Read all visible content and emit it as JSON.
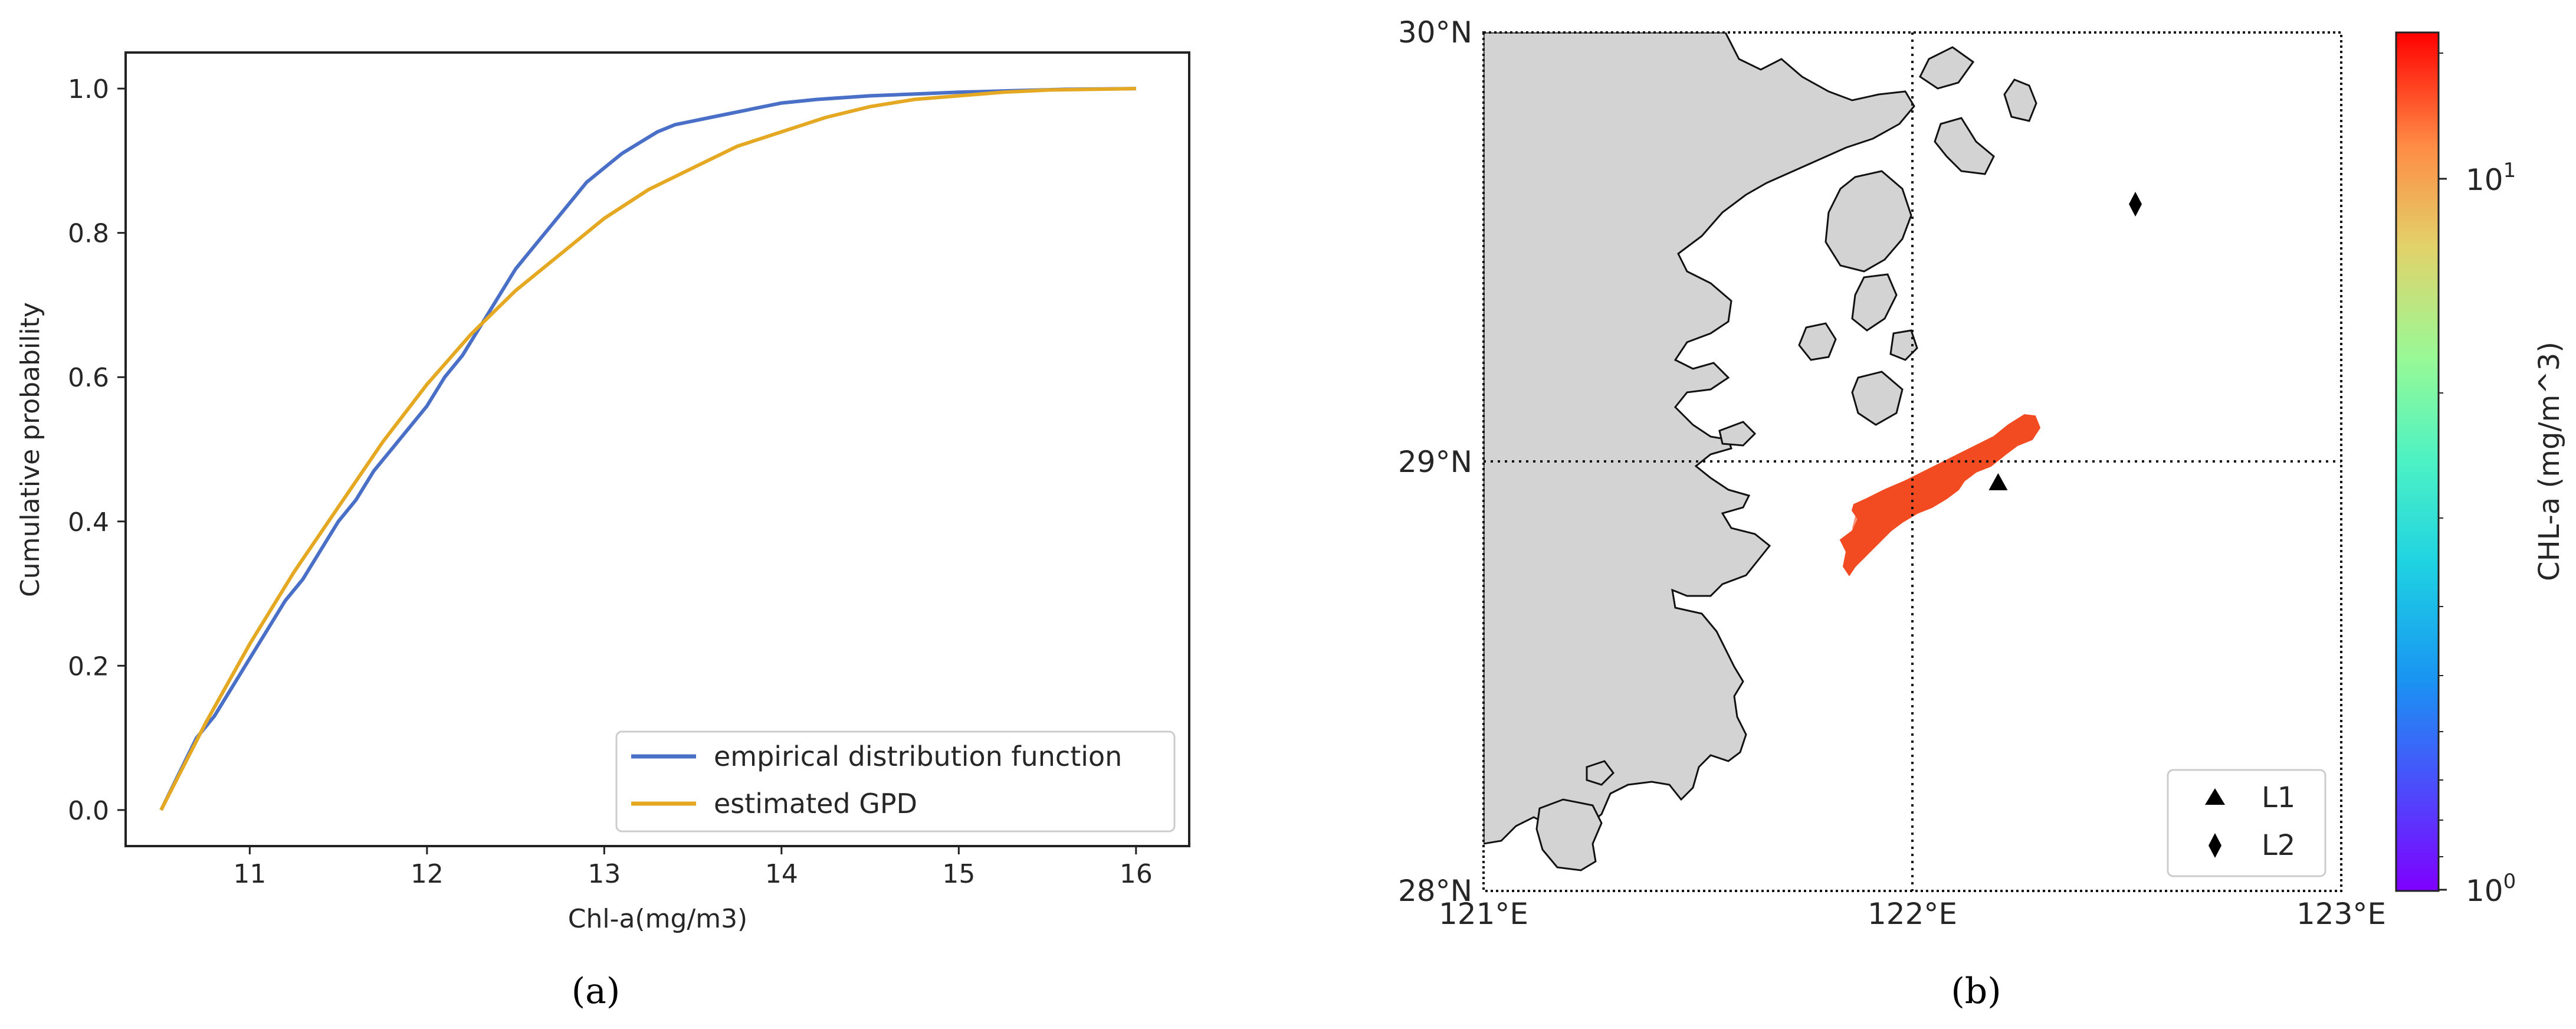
{
  "chart_data": [
    {
      "panel_label": "(a)",
      "type": "line",
      "title": "",
      "xlabel": "Chl-a(mg/m3)",
      "ylabel": "Cumulative probability",
      "xlim": [
        10.3,
        16.3
      ],
      "ylim": [
        -0.05,
        1.05
      ],
      "xticks": [
        "11",
        "12",
        "13",
        "14",
        "15",
        "16"
      ],
      "yticks": [
        "0.0",
        "0.2",
        "0.4",
        "0.6",
        "0.8",
        "1.0"
      ],
      "grid": false,
      "legend_position": "lower right",
      "series": [
        {
          "name": "empirical distribution function",
          "color": "#4a6fc7",
          "x": [
            10.5,
            10.6,
            10.7,
            10.8,
            10.9,
            11.0,
            11.1,
            11.2,
            11.3,
            11.4,
            11.5,
            11.6,
            11.7,
            11.8,
            11.9,
            12.0,
            12.1,
            12.2,
            12.3,
            12.4,
            12.5,
            12.6,
            12.7,
            12.8,
            12.9,
            13.0,
            13.1,
            13.2,
            13.3,
            13.4,
            13.5,
            13.6,
            13.8,
            14.0,
            14.2,
            14.5,
            14.8,
            15.0,
            15.3,
            15.6,
            16.0
          ],
          "y": [
            0.0,
            0.05,
            0.1,
            0.13,
            0.17,
            0.21,
            0.25,
            0.29,
            0.32,
            0.36,
            0.4,
            0.43,
            0.47,
            0.5,
            0.53,
            0.56,
            0.6,
            0.63,
            0.67,
            0.71,
            0.75,
            0.78,
            0.81,
            0.84,
            0.87,
            0.89,
            0.91,
            0.925,
            0.94,
            0.95,
            0.955,
            0.96,
            0.97,
            0.98,
            0.985,
            0.99,
            0.993,
            0.995,
            0.997,
            0.999,
            1.0
          ]
        },
        {
          "name": "estimated GPD",
          "color": "#e5a823",
          "x": [
            10.5,
            10.75,
            11.0,
            11.25,
            11.5,
            11.75,
            12.0,
            12.25,
            12.5,
            12.75,
            13.0,
            13.25,
            13.5,
            13.75,
            14.0,
            14.25,
            14.5,
            14.75,
            15.0,
            15.25,
            15.5,
            15.75,
            16.0
          ],
          "y": [
            0.0,
            0.12,
            0.23,
            0.33,
            0.42,
            0.51,
            0.59,
            0.66,
            0.72,
            0.77,
            0.82,
            0.86,
            0.89,
            0.92,
            0.94,
            0.96,
            0.975,
            0.985,
            0.99,
            0.995,
            0.998,
            0.999,
            1.0
          ]
        }
      ]
    },
    {
      "panel_label": "(b)",
      "type": "map",
      "title": "",
      "x_range": [
        "121°E",
        "123°E"
      ],
      "y_range": [
        "28°N",
        "30°N"
      ],
      "xticks": [
        "121°E",
        "122°E",
        "123°E"
      ],
      "yticks": [
        "28°N",
        "29°N",
        "30°N"
      ],
      "gridlines": {
        "lon": [
          "122°E"
        ],
        "lat": [
          "29°N"
        ],
        "style": "dotted"
      },
      "land_color": "#d3d3d3",
      "bloom_color": "#f24b22",
      "legend_position": "lower right",
      "markers": [
        {
          "name": "L1",
          "shape": "triangle",
          "lon": 122.2,
          "lat": 28.95
        },
        {
          "name": "L2",
          "shape": "diamond",
          "lon": 122.52,
          "lat": 29.6
        }
      ],
      "colorbar": {
        "label": "CHL-a (mg/m^3)",
        "scale": "log",
        "range": [
          1,
          15
        ],
        "colormap": "rainbow",
        "ticks": [
          {
            "base": "10",
            "exp": "0"
          },
          {
            "base": "10",
            "exp": "1"
          }
        ]
      }
    }
  ]
}
